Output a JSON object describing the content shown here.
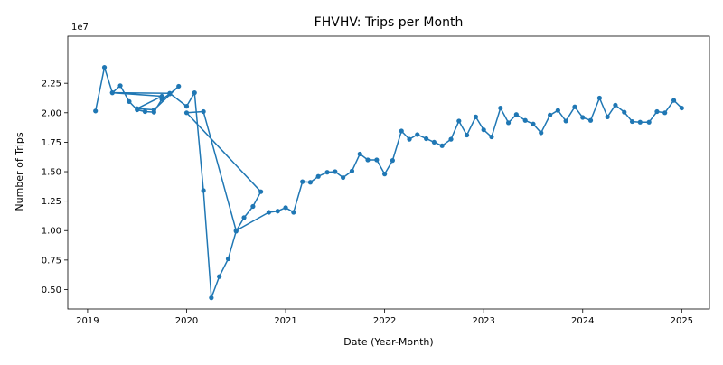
{
  "chart_data": {
    "type": "line",
    "title": "FHVHV: Trips per Month",
    "xlabel": "Date (Year-Month)",
    "ylabel": "Number of Trips",
    "y_offset_label": "1e7",
    "xlim": [
      2018.8,
      2025.28
    ],
    "ylim": [
      3350000,
      26500000
    ],
    "x_ticks": [
      2019,
      2020,
      2021,
      2022,
      2023,
      2024,
      2025
    ],
    "x_tick_labels": [
      "2019",
      "2020",
      "2021",
      "2022",
      "2023",
      "2024",
      "2025"
    ],
    "y_ticks": [
      5000000,
      7500000,
      10000000,
      12500000,
      15000000,
      17500000,
      20000000,
      22500000
    ],
    "y_tick_labels": [
      "0.50",
      "0.75",
      "1.00",
      "1.25",
      "1.50",
      "1.75",
      "2.00",
      "2.25"
    ],
    "grid": false,
    "line_color": "#1f77b4",
    "marker": "circle",
    "series": [
      {
        "x": [
          2019.08,
          2019.17,
          2019.25,
          2019.33,
          2019.42,
          2019.5,
          2019.58,
          2019.67,
          2019.75,
          2019.83,
          2019.92,
          2019.67,
          2019.5,
          2019.75,
          2019.25,
          2019.83,
          2020.0,
          2020.08,
          2020.17,
          2020.25,
          2020.33,
          2020.42,
          2020.5,
          2020.58,
          2020.67,
          2020.75,
          2020.0,
          2020.17,
          2020.5,
          2020.83,
          2020.92,
          2021.0,
          2021.08,
          2021.17,
          2021.25,
          2021.33,
          2021.42,
          2021.5,
          2021.58,
          2021.67,
          2021.75,
          2021.83,
          2021.92,
          2022.0,
          2022.08,
          2022.17,
          2022.25,
          2022.33,
          2022.42,
          2022.5,
          2022.58,
          2022.67,
          2022.75,
          2022.83,
          2022.92,
          2023.0,
          2023.08,
          2023.17,
          2023.25,
          2023.33,
          2023.42,
          2023.5,
          2023.58,
          2023.67,
          2023.75,
          2023.83,
          2023.92,
          2024.0,
          2024.08,
          2024.17,
          2024.25,
          2024.33,
          2024.42,
          2024.5,
          2024.58,
          2024.67,
          2024.75,
          2024.83,
          2024.92,
          2025.0
        ],
        "y": [
          20150000,
          23850000,
          21700000,
          22300000,
          20950000,
          20250000,
          20100000,
          20050000,
          21150000,
          21600000,
          22250000,
          20250000,
          20350000,
          21400000,
          21700000,
          21650000,
          20550000,
          21700000,
          13400000,
          4300000,
          6100000,
          7600000,
          9950000,
          11100000,
          12050000,
          13300000,
          20000000,
          20100000,
          10000000,
          11550000,
          11650000,
          11950000,
          11550000,
          14150000,
          14100000,
          14600000,
          14950000,
          15000000,
          14500000,
          15050000,
          16500000,
          16000000,
          16000000,
          14800000,
          15950000,
          18450000,
          17750000,
          18150000,
          17800000,
          17500000,
          17200000,
          17750000,
          19300000,
          18100000,
          19650000,
          18550000,
          17950000,
          20400000,
          19150000,
          19850000,
          19350000,
          19050000,
          18300000,
          19800000,
          20200000,
          19300000,
          20500000,
          19600000,
          19350000,
          21250000,
          19650000,
          20650000,
          20050000,
          19250000,
          19200000,
          19200000,
          20100000,
          20000000,
          21050000,
          20400000
        ]
      }
    ]
  }
}
